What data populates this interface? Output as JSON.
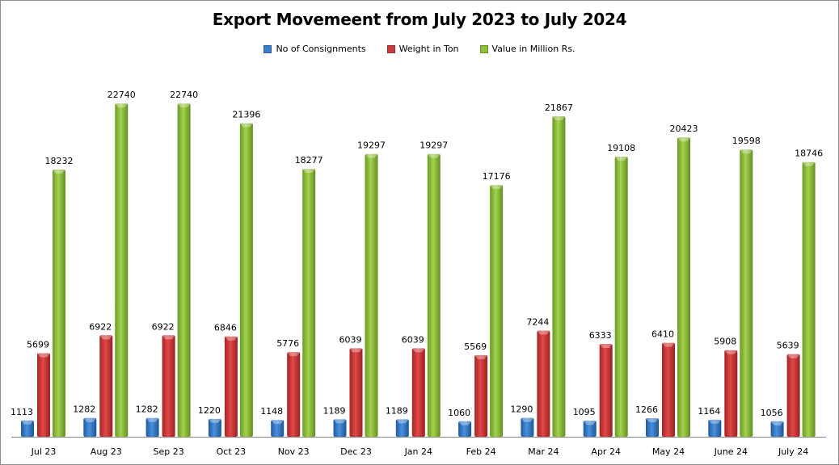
{
  "chart_data": {
    "type": "bar",
    "title": "Export Movemeent from July 2023 to July 2024",
    "xlabel": "",
    "ylabel": "",
    "ylim": [
      0,
      25000
    ],
    "grid": false,
    "legend_position": "top",
    "categories": [
      "Jul 23",
      "Aug 23",
      "Sep 23",
      "Oct 23",
      "Nov 23",
      "Dec 23",
      "Jan 24",
      "Feb 24",
      "Mar 24",
      "Apr 24",
      "May 24",
      "June 24",
      "July 24"
    ],
    "series": [
      {
        "name": "No of Consignments",
        "color": "#3b7dc8",
        "values": [
          1113,
          1282,
          1282,
          1220,
          1148,
          1189,
          1189,
          1060,
          1290,
          1095,
          1266,
          1164,
          1056
        ]
      },
      {
        "name": "Weight in Ton",
        "color": "#cc3b3b",
        "values": [
          5699,
          6922,
          6922,
          6846,
          5776,
          6039,
          6039,
          5569,
          7244,
          6333,
          6410,
          5908,
          5639
        ]
      },
      {
        "name": "Value in Million Rs.",
        "color": "#8ec03c",
        "values": [
          18232,
          22740,
          22740,
          21396,
          18277,
          19297,
          19297,
          17176,
          21867,
          19108,
          20423,
          19598,
          18746
        ]
      }
    ]
  }
}
